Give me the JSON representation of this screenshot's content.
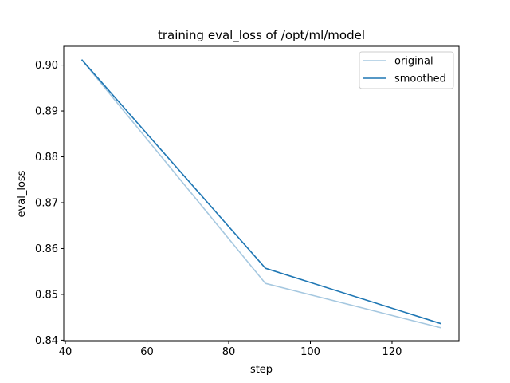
{
  "chart_data": {
    "type": "line",
    "title": "training eval_loss of /opt/ml/model",
    "xlabel": "step",
    "ylabel": "eval_loss",
    "xlim": [
      39.6,
      136.4
    ],
    "ylim": [
      0.8399,
      0.9041
    ],
    "xticks": [
      40,
      60,
      80,
      100,
      120
    ],
    "xtick_labels": [
      "40",
      "60",
      "80",
      "100",
      "120"
    ],
    "yticks": [
      0.84,
      0.85,
      0.86,
      0.87,
      0.88,
      0.89,
      0.9
    ],
    "ytick_labels": [
      "0.84",
      "0.85",
      "0.86",
      "0.87",
      "0.88",
      "0.89",
      "0.90"
    ],
    "grid": false,
    "legend_position": "top-right",
    "series": [
      {
        "name": "original",
        "color": "#a6c8e0",
        "x": [
          44,
          89,
          132
        ],
        "y": [
          0.9012,
          0.8524,
          0.8427
        ]
      },
      {
        "name": "smoothed",
        "color": "#1f77b4",
        "x": [
          44,
          89,
          132
        ],
        "y": [
          0.9012,
          0.8557,
          0.8436
        ]
      }
    ]
  }
}
